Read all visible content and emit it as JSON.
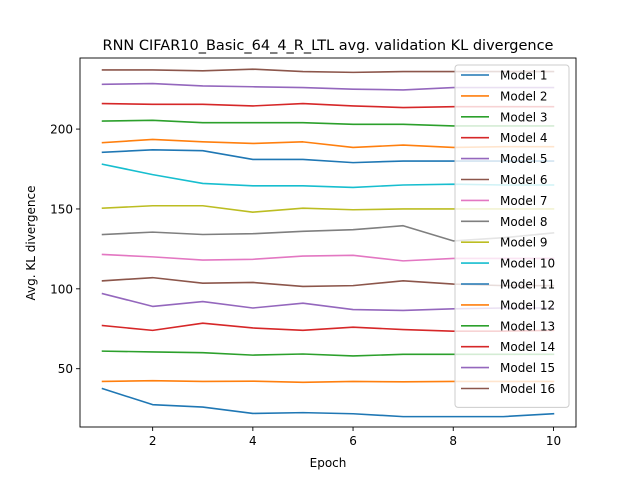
{
  "chart_data": {
    "type": "line",
    "title": "RNN CIFAR10_Basic_64_4_R_LTL avg. validation KL divergence",
    "xlabel": "Epoch",
    "ylabel": "Avg. KL divergence",
    "xlim": [
      0.55,
      10.45
    ],
    "ylim": [
      13.5,
      244.5
    ],
    "xticks": [
      2,
      4,
      6,
      8,
      10
    ],
    "yticks": [
      50,
      100,
      150,
      200
    ],
    "grid": false,
    "legend_position": "top-right",
    "x": [
      1,
      2,
      3,
      4,
      5,
      6,
      7,
      8,
      9,
      10
    ],
    "series": [
      {
        "name": "Model 1",
        "color": "#1f77b4",
        "values": [
          37.5,
          27.5,
          26,
          22,
          22.5,
          21.8,
          20,
          20,
          20,
          21.8
        ]
      },
      {
        "name": "Model 2",
        "color": "#ff7f0e",
        "values": [
          42,
          42.5,
          42,
          42.2,
          41.5,
          42,
          41.8,
          42,
          42,
          42
        ]
      },
      {
        "name": "Model 3",
        "color": "#2ca02c",
        "values": [
          61,
          60.5,
          60,
          58.5,
          59.2,
          58,
          59,
          59,
          59,
          59
        ]
      },
      {
        "name": "Model 4",
        "color": "#d62728",
        "values": [
          77,
          74,
          78.5,
          75.5,
          74,
          76,
          74.5,
          73.5,
          73.5,
          74
        ]
      },
      {
        "name": "Model 5",
        "color": "#9467bd",
        "values": [
          97,
          89,
          92,
          88,
          91,
          87,
          86.5,
          87.5,
          88,
          88
        ]
      },
      {
        "name": "Model 6",
        "color": "#8c564b",
        "values": [
          105,
          107,
          103.5,
          104,
          101.5,
          102,
          105,
          103,
          102,
          102
        ]
      },
      {
        "name": "Model 7",
        "color": "#e377c2",
        "values": [
          121.5,
          120,
          118,
          118.5,
          120.5,
          121,
          117.5,
          119,
          119,
          119
        ]
      },
      {
        "name": "Model 8",
        "color": "#7f7f7f",
        "values": [
          134,
          135.5,
          134,
          134.5,
          136,
          137,
          139.5,
          130,
          132,
          135
        ]
      },
      {
        "name": "Model 9",
        "color": "#bcbd22",
        "values": [
          150.5,
          152,
          152,
          148,
          150.5,
          149.5,
          150,
          150,
          150,
          150
        ]
      },
      {
        "name": "Model 10",
        "color": "#17becf",
        "values": [
          178,
          171.5,
          166,
          164.5,
          164.5,
          163.5,
          165,
          165.5,
          165,
          165
        ]
      },
      {
        "name": "Model 11",
        "color": "#1f77b4",
        "values": [
          185.5,
          187,
          186.5,
          181,
          181,
          179,
          180,
          180,
          180,
          180
        ]
      },
      {
        "name": "Model 12",
        "color": "#ff7f0e",
        "values": [
          191.5,
          193.5,
          192,
          191,
          192,
          188.5,
          190,
          188.5,
          189,
          189
        ]
      },
      {
        "name": "Model 13",
        "color": "#2ca02c",
        "values": [
          205,
          205.5,
          204,
          204,
          204,
          203,
          203,
          202,
          202,
          202
        ]
      },
      {
        "name": "Model 14",
        "color": "#d62728",
        "values": [
          216,
          215.5,
          215.5,
          214.5,
          216,
          214.5,
          213.5,
          214,
          214,
          214
        ]
      },
      {
        "name": "Model 15",
        "color": "#9467bd",
        "values": [
          228,
          228.5,
          227,
          226.5,
          226,
          225,
          224.5,
          226,
          226,
          226
        ]
      },
      {
        "name": "Model 16",
        "color": "#8c564b",
        "values": [
          237,
          237,
          236.5,
          237.5,
          236,
          235.5,
          236,
          236,
          236,
          236
        ]
      }
    ]
  }
}
